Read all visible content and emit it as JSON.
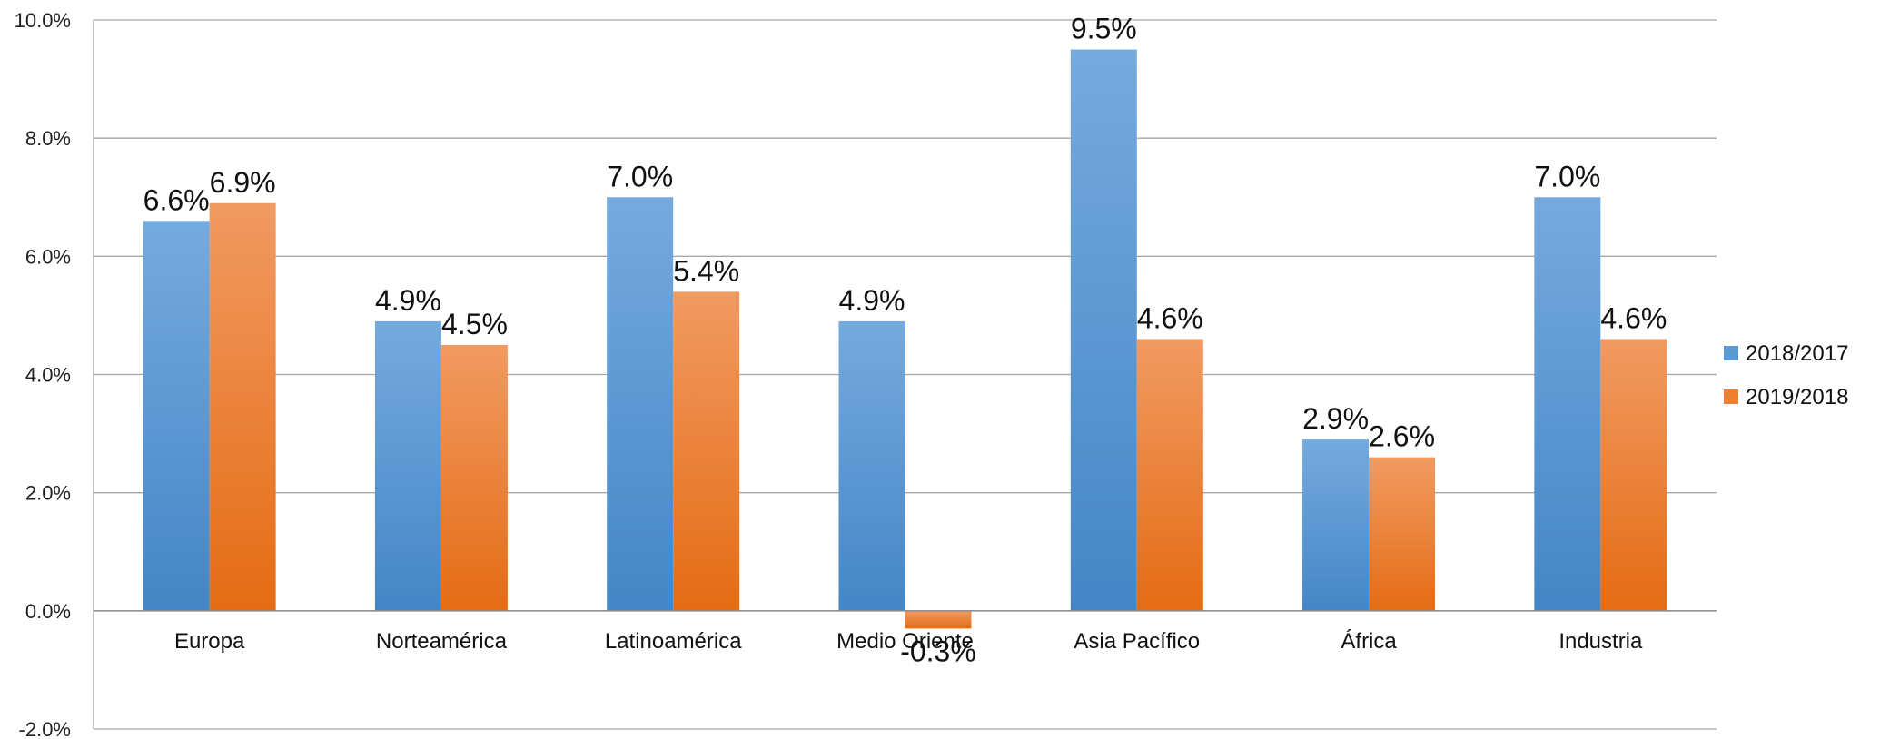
{
  "chart_data": {
    "type": "bar",
    "categories": [
      "Europa",
      "Norteamérica",
      "Latinoamérica",
      "Medio Oriente",
      "Asia Pacífico",
      "África",
      "Industria"
    ],
    "series": [
      {
        "name": "2018/2017",
        "values": [
          6.6,
          4.9,
          7.0,
          4.9,
          9.5,
          2.9,
          7.0
        ],
        "color": "#5B9BD5"
      },
      {
        "name": "2019/2018",
        "values": [
          6.9,
          4.5,
          5.4,
          -0.3,
          4.6,
          2.6,
          4.6
        ],
        "color": "#ED7D31"
      }
    ],
    "value_labels": {
      "2018/2017": [
        "6.6%",
        "4.9%",
        "7.0%",
        "4.9%",
        "9.5%",
        "2.9%",
        "7.0%"
      ],
      "2019/2018": [
        "6.9%",
        "4.5%",
        "5.4%",
        "-0.3%",
        "4.6%",
        "2.6%",
        "4.6%"
      ]
    },
    "yticks": [
      -2,
      0,
      2,
      4,
      6,
      8,
      10
    ],
    "ytick_labels": [
      "-2.0%",
      "0.0%",
      "2.0%",
      "4.0%",
      "6.0%",
      "8.0%",
      "10.0%"
    ],
    "ylim": [
      -2,
      10
    ],
    "grid": true,
    "legend_position": "right",
    "title": "",
    "xlabel": "",
    "ylabel": ""
  }
}
